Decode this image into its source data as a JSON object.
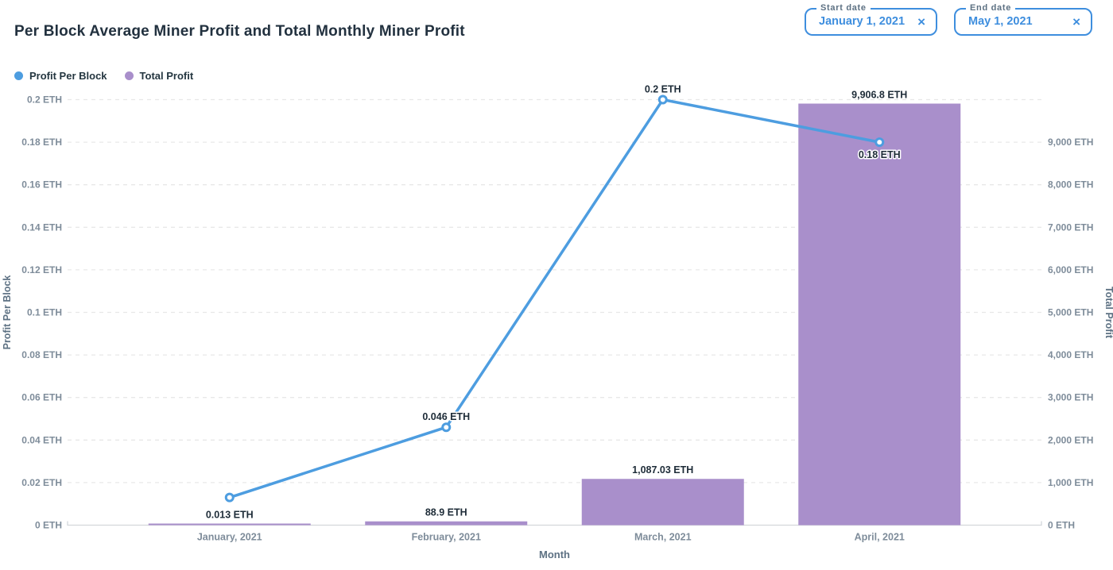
{
  "title": "Per Block Average Miner Profit and Total Monthly Miner Profit",
  "controls": {
    "start_date": {
      "label": "Start date",
      "value": "January 1, 2021",
      "clear_icon": "×"
    },
    "end_date": {
      "label": "End date",
      "value": "May 1, 2021",
      "clear_icon": "×"
    }
  },
  "legend": [
    {
      "label": "Profit Per Block",
      "color": "#4D9DE0"
    },
    {
      "label": "Total Profit",
      "color": "#A98FCB"
    }
  ],
  "colors": {
    "line": "#4D9DE0",
    "bar": "#A98FCB",
    "accent_blue": "#3E8EDE",
    "grid": "#E8E8E8",
    "axis_line": "#D3D7DB"
  },
  "chart_data": {
    "type": "combo",
    "categories": [
      "January, 2021",
      "February, 2021",
      "March, 2021",
      "April, 2021"
    ],
    "xlabel": "Month",
    "series": [
      {
        "name": "Profit Per Block",
        "type": "line",
        "axis": "left",
        "color": "#4D9DE0",
        "values": [
          0.013,
          0.046,
          0.2,
          0.18
        ],
        "point_labels": [
          "0.013 ETH",
          "0.046 ETH",
          "0.2 ETH",
          "0.18 ETH"
        ]
      },
      {
        "name": "Total Profit",
        "type": "bar",
        "axis": "right",
        "color": "#A98FCB",
        "values": [
          20,
          88.9,
          1087.03,
          9906.8
        ],
        "point_labels": [
          "",
          "88.9 ETH",
          "1,087.03 ETH",
          "9,906.8 ETH"
        ]
      }
    ],
    "left_axis": {
      "label": "Profit Per Block",
      "min": 0,
      "max": 0.2,
      "ticks": [
        "0 ETH",
        "0.02 ETH",
        "0.04 ETH",
        "0.06 ETH",
        "0.08 ETH",
        "0.1 ETH",
        "0.12 ETH",
        "0.14 ETH",
        "0.16 ETH",
        "0.18 ETH",
        "0.2 ETH"
      ]
    },
    "right_axis": {
      "label": "Total Profit",
      "min": 0,
      "max": 9000,
      "ticks": [
        "0 ETH",
        "1,000 ETH",
        "2,000 ETH",
        "3,000 ETH",
        "4,000 ETH",
        "5,000 ETH",
        "6,000 ETH",
        "7,000 ETH",
        "8,000 ETH",
        "9,000 ETH"
      ]
    },
    "grid": "horizontal-dashed",
    "legend_position": "top-left"
  }
}
